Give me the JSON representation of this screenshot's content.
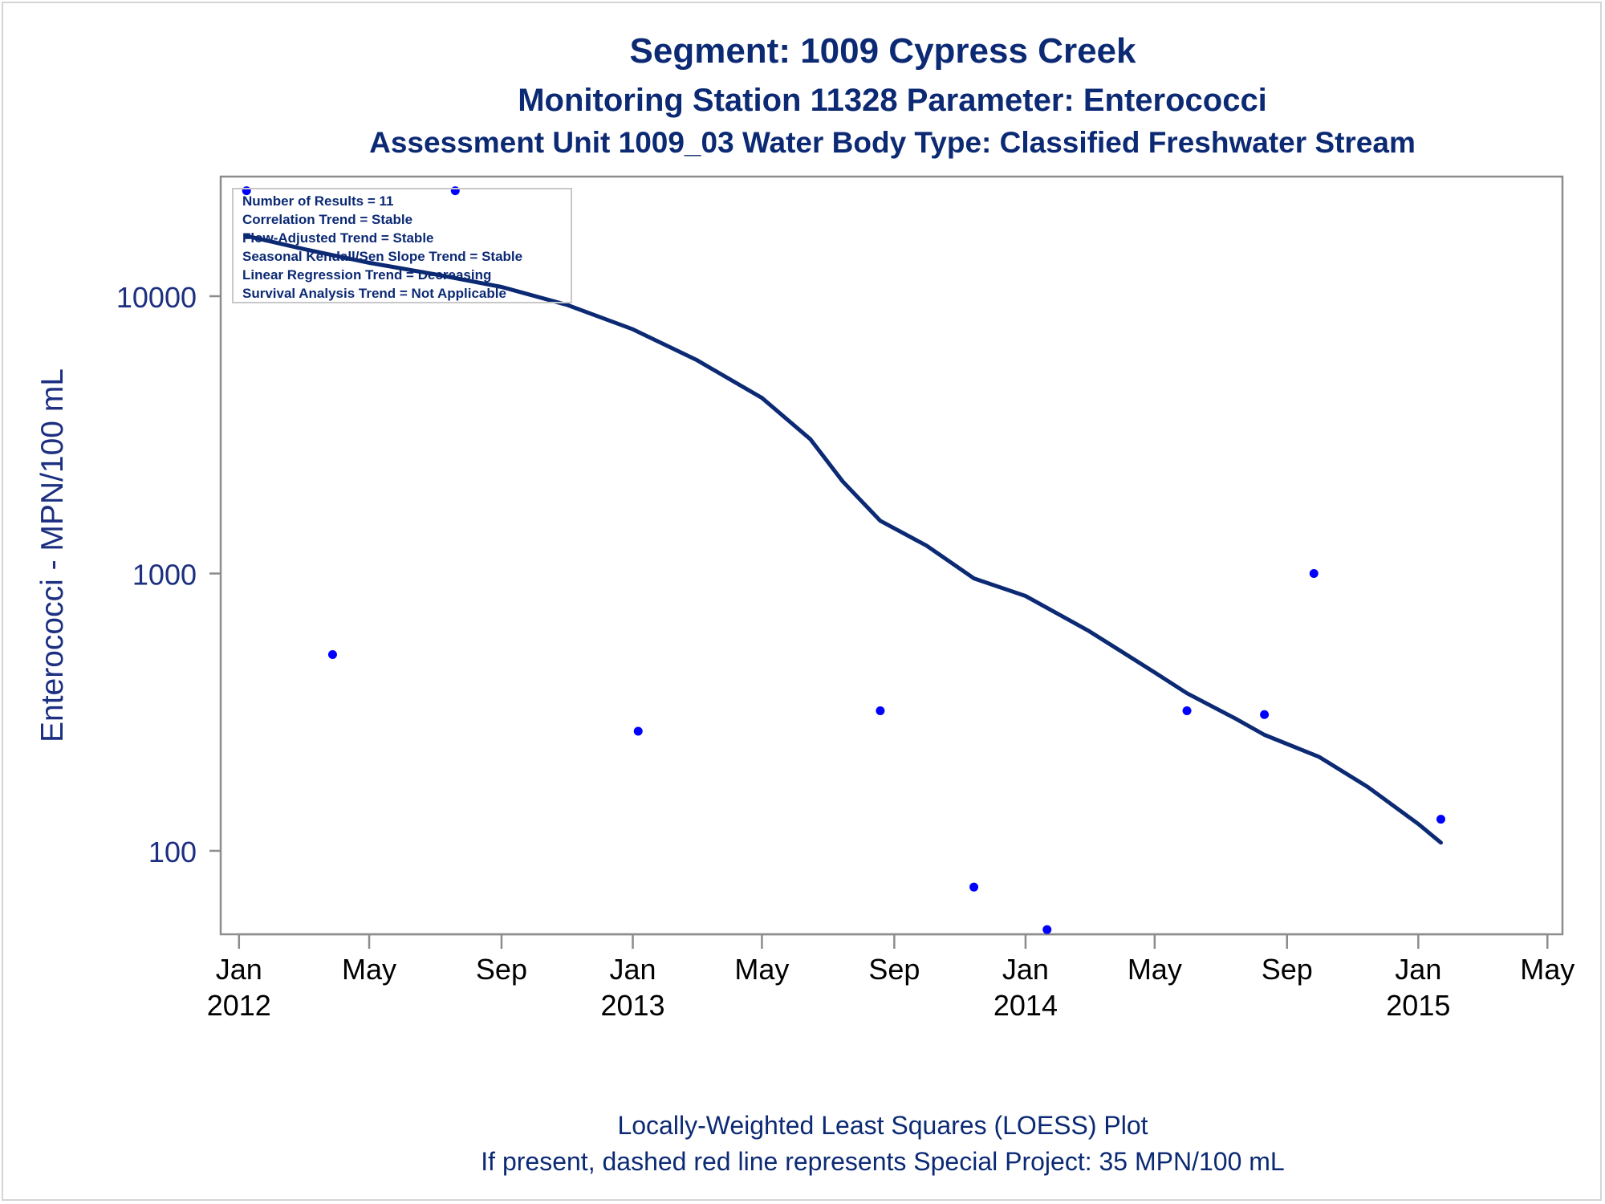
{
  "header": {
    "title": "Segment: 1009  Cypress Creek",
    "subtitle1": "Monitoring Station 11328 Parameter: Enterococci",
    "subtitle2": "Assessment Unit 1009_03   Water Body Type: Classified Freshwater Stream"
  },
  "footer": {
    "line1": "Locally-Weighted Least Squares (LOESS) Plot",
    "line2": "If present, dashed red line represents Special Project: 35 MPN/100 mL"
  },
  "colors": {
    "title": "#0c2a74",
    "axis_text": "#1c2f80",
    "tick_text": "#000000",
    "points": "#0000ff",
    "loess": "#0c2a74",
    "frame": "#8c8c8c"
  },
  "chart_data": {
    "type": "scatter",
    "ylabel": "Enterococci - MPN/100 mL",
    "y_scale": "log",
    "ylim": [
      50,
      27000
    ],
    "yticks": [
      {
        "value": 100,
        "label": "100"
      },
      {
        "value": 1000,
        "label": "1000"
      },
      {
        "value": 10000,
        "label": "10000"
      }
    ],
    "xlim": [
      "2011-12-15",
      "2015-05-15"
    ],
    "xticks": [
      {
        "date": "2012-01-01",
        "label": "Jan",
        "year": "2012"
      },
      {
        "date": "2012-05-01",
        "label": "May",
        "year": ""
      },
      {
        "date": "2012-09-01",
        "label": "Sep",
        "year": ""
      },
      {
        "date": "2013-01-01",
        "label": "Jan",
        "year": "2013"
      },
      {
        "date": "2013-05-01",
        "label": "May",
        "year": ""
      },
      {
        "date": "2013-09-01",
        "label": "Sep",
        "year": ""
      },
      {
        "date": "2014-01-01",
        "label": "Jan",
        "year": "2014"
      },
      {
        "date": "2014-05-01",
        "label": "May",
        "year": ""
      },
      {
        "date": "2014-09-01",
        "label": "Sep",
        "year": ""
      },
      {
        "date": "2015-01-01",
        "label": "Jan",
        "year": "2015"
      },
      {
        "date": "2015-05-01",
        "label": "May",
        "year": ""
      }
    ],
    "series": [
      {
        "kind": "points",
        "values": [
          {
            "x": "2012-01-08",
            "y": 24000
          },
          {
            "x": "2012-03-28",
            "y": 510
          },
          {
            "x": "2012-07-20",
            "y": 24000
          },
          {
            "x": "2013-01-06",
            "y": 270
          },
          {
            "x": "2013-08-19",
            "y": 320
          },
          {
            "x": "2013-11-14",
            "y": 74
          },
          {
            "x": "2014-01-21",
            "y": 52
          },
          {
            "x": "2014-05-31",
            "y": 320
          },
          {
            "x": "2014-08-11",
            "y": 310
          },
          {
            "x": "2014-09-26",
            "y": 1000
          },
          {
            "x": "2015-01-22",
            "y": 130
          }
        ]
      },
      {
        "kind": "loess",
        "values": [
          {
            "x": "2012-01-08",
            "y": 16500
          },
          {
            "x": "2012-03-01",
            "y": 14800
          },
          {
            "x": "2012-05-01",
            "y": 13200
          },
          {
            "x": "2012-07-01",
            "y": 12000
          },
          {
            "x": "2012-09-01",
            "y": 10800
          },
          {
            "x": "2012-11-01",
            "y": 9300
          },
          {
            "x": "2013-01-01",
            "y": 7600
          },
          {
            "x": "2013-03-01",
            "y": 5900
          },
          {
            "x": "2013-05-01",
            "y": 4300
          },
          {
            "x": "2013-06-15",
            "y": 3050
          },
          {
            "x": "2013-07-15",
            "y": 2150
          },
          {
            "x": "2013-08-19",
            "y": 1550
          },
          {
            "x": "2013-10-01",
            "y": 1260
          },
          {
            "x": "2013-11-14",
            "y": 960
          },
          {
            "x": "2014-01-01",
            "y": 830
          },
          {
            "x": "2014-03-01",
            "y": 620
          },
          {
            "x": "2014-05-01",
            "y": 440
          },
          {
            "x": "2014-05-31",
            "y": 370
          },
          {
            "x": "2014-07-15",
            "y": 300
          },
          {
            "x": "2014-08-11",
            "y": 262
          },
          {
            "x": "2014-10-01",
            "y": 218
          },
          {
            "x": "2014-11-15",
            "y": 170
          },
          {
            "x": "2015-01-01",
            "y": 125
          },
          {
            "x": "2015-01-22",
            "y": 107
          }
        ]
      }
    ],
    "stats_box": [
      "Number of Results = 11",
      "Correlation Trend = Stable",
      "Flow-Adjusted Trend = Stable",
      "Seasonal Kendall/Sen Slope Trend = Stable",
      "Linear Regression Trend = Decreasing",
      "Survival Analysis Trend = Not Applicable"
    ],
    "stats_box_position": "top-left"
  }
}
